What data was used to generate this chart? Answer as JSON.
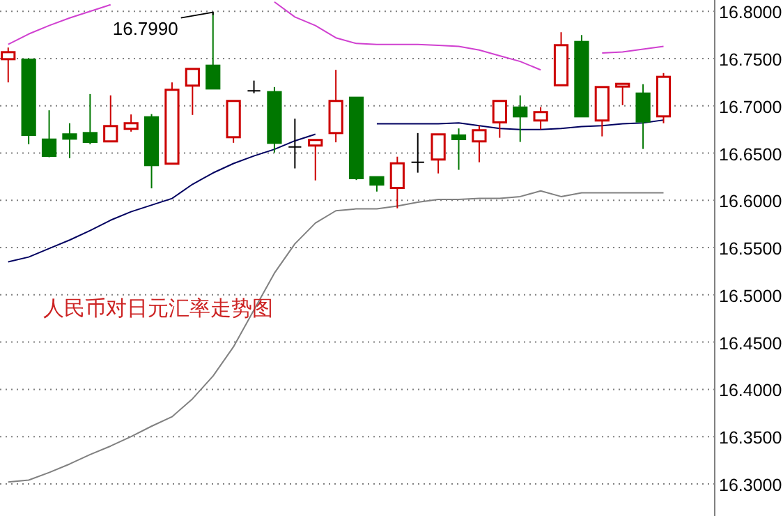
{
  "chart_data": {
    "type": "candlestick",
    "title": "人民币对日元汇率走势图",
    "categories": [
      null,
      null,
      null,
      null,
      null,
      null,
      null,
      null,
      null,
      null,
      null,
      null,
      null,
      null,
      null,
      null,
      null,
      null,
      null,
      null,
      null,
      null,
      null,
      null,
      null,
      null,
      null,
      null,
      null,
      null,
      null,
      null,
      null
    ],
    "ohlc": [
      [
        16.7494,
        16.7617,
        16.7248,
        16.7568
      ],
      [
        16.7488,
        16.7503,
        16.6594,
        16.6692
      ],
      [
        16.6643,
        16.6953,
        16.6456,
        16.6471
      ],
      [
        16.6698,
        16.6816,
        16.6447,
        16.6653
      ],
      [
        16.6712,
        16.7125,
        16.6594,
        16.6618
      ],
      [
        16.6624,
        16.7111,
        16.6624,
        16.6786
      ],
      [
        16.6757,
        16.6909,
        16.6727,
        16.6816
      ],
      [
        16.6879,
        16.6913,
        16.6127,
        16.6373
      ],
      [
        16.6388,
        16.7248,
        16.6388,
        16.717
      ],
      [
        16.7214,
        16.7391,
        16.6904,
        16.7391
      ],
      [
        16.7425,
        16.799,
        16.7184,
        16.7184
      ],
      [
        16.6668,
        16.7052,
        16.6609,
        16.7052
      ],
      [
        16.7159,
        16.7267,
        16.7134,
        16.7159
      ],
      [
        16.7145,
        16.7199,
        16.6506,
        16.6609
      ],
      [
        16.6565,
        16.6864,
        16.6338,
        16.6565
      ],
      [
        16.658,
        16.6643,
        16.6211,
        16.6639
      ],
      [
        16.6712,
        16.7381,
        16.6614,
        16.7052
      ],
      [
        16.7086,
        16.7086,
        16.6215,
        16.6235
      ],
      [
        16.6245,
        16.6245,
        16.6093,
        16.6167
      ],
      [
        16.6131,
        16.6462,
        16.5916,
        16.6392
      ],
      [
        16.6403,
        16.6712,
        16.6293,
        16.6403
      ],
      [
        16.6432,
        16.6698,
        16.6285,
        16.6698
      ],
      [
        16.6687,
        16.6761,
        16.6323,
        16.6648
      ],
      [
        16.6624,
        16.6791,
        16.6403,
        16.6742
      ],
      [
        16.6825,
        16.7052,
        16.6662,
        16.7052
      ],
      [
        16.6982,
        16.7111,
        16.6618,
        16.6889
      ],
      [
        16.6845,
        16.6987,
        16.6751,
        16.6934
      ],
      [
        16.7218,
        16.7779,
        16.7218,
        16.7642
      ],
      [
        16.7676,
        16.7749,
        16.6889,
        16.6889
      ],
      [
        16.6845,
        16.7199,
        16.6677,
        16.7199
      ],
      [
        16.7204,
        16.7237,
        16.7007,
        16.7233
      ],
      [
        16.713,
        16.7229,
        16.6544,
        16.6835
      ],
      [
        16.6889,
        16.7347,
        16.6816,
        16.7307
      ]
    ],
    "series": [
      {
        "type": "line",
        "color": "#d040d0",
        "values": [
          16.765,
          16.776,
          16.785,
          16.793,
          16.8,
          16.807,
          null,
          null,
          null,
          null,
          null,
          null,
          null,
          16.81,
          16.794,
          16.785,
          16.772,
          16.766,
          16.765,
          16.765,
          16.765,
          16.764,
          16.763,
          16.759,
          16.753,
          16.747,
          16.738,
          null,
          null,
          16.756,
          16.757,
          16.76,
          16.763
        ]
      },
      {
        "type": "line",
        "color": "#000060",
        "values": [
          16.535,
          16.54,
          16.549,
          16.558,
          16.568,
          16.579,
          16.588,
          16.595,
          16.602,
          16.617,
          16.629,
          16.639,
          16.647,
          16.654,
          16.663,
          16.67,
          null,
          null,
          16.681,
          16.681,
          16.681,
          16.681,
          16.682,
          16.679,
          16.676,
          16.675,
          16.675,
          16.676,
          16.678,
          16.679,
          16.681,
          16.682,
          16.685
        ]
      },
      {
        "type": "line",
        "color": "#808080",
        "values": [
          16.302,
          16.304,
          16.312,
          16.321,
          16.331,
          16.34,
          16.35,
          16.361,
          16.371,
          16.39,
          16.414,
          16.445,
          16.484,
          16.523,
          16.554,
          16.576,
          16.589,
          16.591,
          16.591,
          16.594,
          16.598,
          16.601,
          16.601,
          16.602,
          16.602,
          16.604,
          16.61,
          16.604,
          16.608,
          16.608,
          16.608,
          16.608,
          16.608
        ]
      }
    ],
    "annotations": [
      "16.7990"
    ],
    "ylim": [
      16.266,
      16.812
    ],
    "yticks": [
      {
        "value": 16.3,
        "label": "16.3000"
      },
      {
        "value": 16.35,
        "label": "16.3500"
      },
      {
        "value": 16.4,
        "label": "16.4000"
      },
      {
        "value": 16.45,
        "label": "16.4500"
      },
      {
        "value": 16.5,
        "label": "16.5000"
      },
      {
        "value": 16.55,
        "label": "16.5500"
      },
      {
        "value": 16.6,
        "label": "16.6000"
      },
      {
        "value": 16.65,
        "label": "16.6500"
      },
      {
        "value": 16.7,
        "label": "16.7000"
      },
      {
        "value": 16.75,
        "label": "16.7500"
      },
      {
        "value": 16.8,
        "label": "16.8000"
      }
    ],
    "grid": "y",
    "tick_labels": "y"
  }
}
